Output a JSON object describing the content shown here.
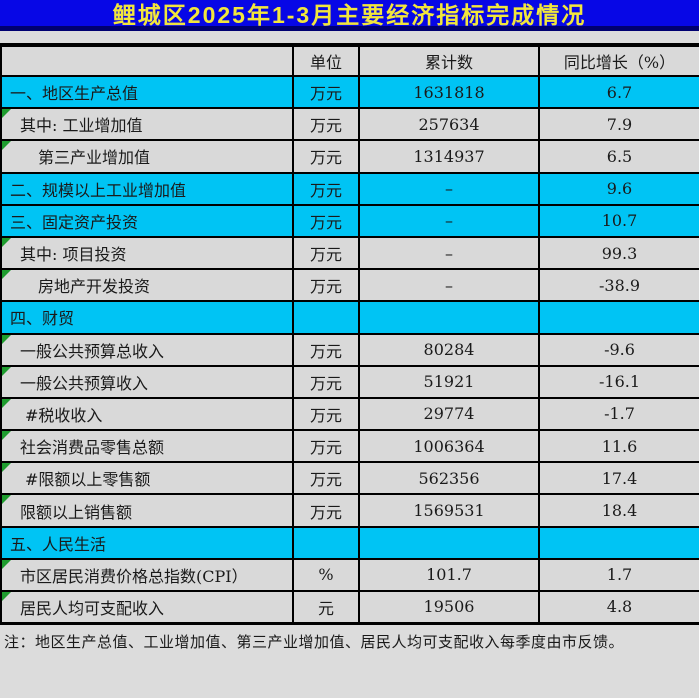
{
  "title": "鲤城区2025年1-3月主要经济指标完成情况",
  "colors": {
    "title_bg": "#0707e6",
    "title_edge": "#000070",
    "title_text": "#f2e63c",
    "section_bg": "#00c4f4",
    "row_bg": "#d9d9d9",
    "page_bg": "#dcdcdc",
    "border": "#000000",
    "marker": "#1e9c2e"
  },
  "table": {
    "headers": {
      "indicator": "",
      "unit": "单位",
      "cumulative": "累计数",
      "growth": "同比增长（%）"
    },
    "rows": [
      {
        "label": "一、地区生产总值",
        "unit": "万元",
        "value": "1631818",
        "growth": "6.7",
        "section": true,
        "indent": 0,
        "marker": false
      },
      {
        "label": "其中: 工业增加值",
        "unit": "万元",
        "value": "257634",
        "growth": "7.9",
        "section": false,
        "indent": 1,
        "marker": true
      },
      {
        "label": "第三产业增加值",
        "unit": "万元",
        "value": "1314937",
        "growth": "6.5",
        "section": false,
        "indent": 3,
        "marker": true
      },
      {
        "label": "二、规模以上工业增加值",
        "unit": "万元",
        "value": "–",
        "growth": "9.6",
        "section": true,
        "indent": 0,
        "marker": false
      },
      {
        "label": "三、固定资产投资",
        "unit": "万元",
        "value": "–",
        "growth": "10.7",
        "section": true,
        "indent": 0,
        "marker": false
      },
      {
        "label": "其中: 项目投资",
        "unit": "万元",
        "value": "–",
        "growth": "99.3",
        "section": false,
        "indent": 1,
        "marker": true
      },
      {
        "label": "房地产开发投资",
        "unit": "万元",
        "value": "–",
        "growth": "-38.9",
        "section": false,
        "indent": 3,
        "marker": true
      },
      {
        "label": "四、财贸",
        "unit": "",
        "value": "",
        "growth": "",
        "section": true,
        "indent": 0,
        "marker": false
      },
      {
        "label": "一般公共预算总收入",
        "unit": "万元",
        "value": "80284",
        "growth": "-9.6",
        "section": false,
        "indent": 1,
        "marker": true
      },
      {
        "label": "一般公共预算收入",
        "unit": "万元",
        "value": "51921",
        "growth": "-16.1",
        "section": false,
        "indent": 1,
        "marker": true
      },
      {
        "label": "#税收收入",
        "unit": "万元",
        "value": "29774",
        "growth": "-1.7",
        "section": false,
        "indent": 2,
        "marker": true
      },
      {
        "label": "社会消费品零售总额",
        "unit": "万元",
        "value": "1006364",
        "growth": "11.6",
        "section": false,
        "indent": 1,
        "marker": true
      },
      {
        "label": "#限额以上零售额",
        "unit": "万元",
        "value": "562356",
        "growth": "17.4",
        "section": false,
        "indent": 2,
        "marker": true
      },
      {
        "label": "限额以上销售额",
        "unit": "万元",
        "value": "1569531",
        "growth": "18.4",
        "section": false,
        "indent": 1,
        "marker": true
      },
      {
        "label": "五、人民生活",
        "unit": "",
        "value": "",
        "growth": "",
        "section": true,
        "indent": 0,
        "marker": false
      },
      {
        "label": "市区居民消费价格总指数(CPI）",
        "unit": "%",
        "value": "101.7",
        "growth": "1.7",
        "section": false,
        "indent": 1,
        "marker": true
      },
      {
        "label": "居民人均可支配收入",
        "unit": "元",
        "value": "19506",
        "growth": "4.8",
        "section": false,
        "indent": 1,
        "marker": true
      }
    ]
  },
  "note": "注：地区生产总值、工业增加值、第三产业增加值、居民人均可支配收入每季度由市反馈。"
}
